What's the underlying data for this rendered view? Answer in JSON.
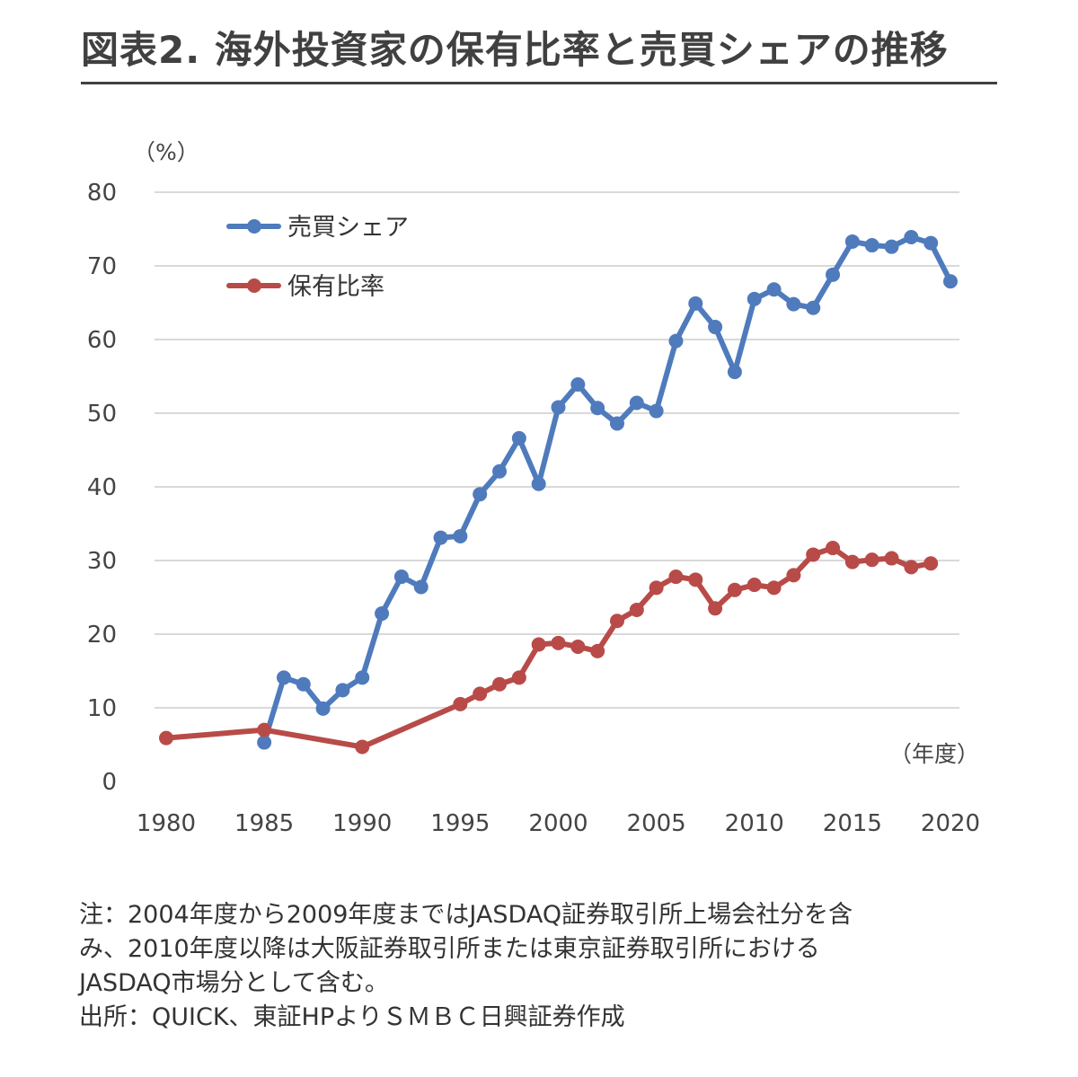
{
  "title": "図表2. 海外投資家の保有比率と売買シェアの推移",
  "colors": {
    "share": "#4f7bbd",
    "holding": "#b84b48",
    "grid": "#d9d9d9",
    "axis_text": "#444444"
  },
  "chart_data": {
    "type": "line",
    "title": "",
    "ylabel": "（%）",
    "xlabel": "（年度）",
    "ylim": [
      0,
      80
    ],
    "yticks": [
      0,
      10,
      20,
      30,
      40,
      50,
      60,
      70,
      80
    ],
    "xlim": [
      1980,
      2020
    ],
    "xticks": [
      1980,
      1985,
      1990,
      1995,
      2000,
      2005,
      2010,
      2015,
      2020
    ],
    "grid": true,
    "legend_position": "top-left",
    "series": [
      {
        "name": "売買シェア",
        "color": "#4f7bbd",
        "points": [
          [
            1985,
            5.3
          ],
          [
            1986,
            14.1
          ],
          [
            1987,
            13.2
          ],
          [
            1988,
            9.9
          ],
          [
            1989,
            12.4
          ],
          [
            1990,
            14.1
          ],
          [
            1991,
            22.8
          ],
          [
            1992,
            27.8
          ],
          [
            1993,
            26.4
          ],
          [
            1994,
            33.1
          ],
          [
            1995,
            33.3
          ],
          [
            1996,
            39.0
          ],
          [
            1997,
            42.1
          ],
          [
            1998,
            46.6
          ],
          [
            1999,
            40.4
          ],
          [
            2000,
            50.8
          ],
          [
            2001,
            53.9
          ],
          [
            2002,
            50.7
          ],
          [
            2003,
            48.6
          ],
          [
            2004,
            51.4
          ],
          [
            2005,
            50.3
          ],
          [
            2006,
            59.8
          ],
          [
            2007,
            64.9
          ],
          [
            2008,
            61.7
          ],
          [
            2009,
            55.6
          ],
          [
            2010,
            65.5
          ],
          [
            2011,
            66.8
          ],
          [
            2012,
            64.8
          ],
          [
            2013,
            64.3
          ],
          [
            2014,
            68.8
          ],
          [
            2015,
            73.3
          ],
          [
            2016,
            72.8
          ],
          [
            2017,
            72.6
          ],
          [
            2018,
            73.9
          ],
          [
            2019,
            73.1
          ],
          [
            2020,
            67.9
          ]
        ]
      },
      {
        "name": "保有比率",
        "color": "#b84b48",
        "points": [
          [
            1980,
            5.9
          ],
          [
            1985,
            7.0
          ],
          [
            1990,
            4.7
          ],
          [
            1995,
            10.5
          ],
          [
            1996,
            11.9
          ],
          [
            1997,
            13.2
          ],
          [
            1998,
            14.1
          ],
          [
            1999,
            18.6
          ],
          [
            2000,
            18.8
          ],
          [
            2001,
            18.3
          ],
          [
            2002,
            17.7
          ],
          [
            2003,
            21.8
          ],
          [
            2004,
            23.3
          ],
          [
            2005,
            26.3
          ],
          [
            2006,
            27.8
          ],
          [
            2007,
            27.4
          ],
          [
            2008,
            23.5
          ],
          [
            2009,
            26.0
          ],
          [
            2010,
            26.7
          ],
          [
            2011,
            26.3
          ],
          [
            2012,
            28.0
          ],
          [
            2013,
            30.8
          ],
          [
            2014,
            31.7
          ],
          [
            2015,
            29.8
          ],
          [
            2016,
            30.1
          ],
          [
            2017,
            30.3
          ],
          [
            2018,
            29.1
          ],
          [
            2019,
            29.6
          ]
        ]
      }
    ]
  },
  "notes": [
    "注：2004年度から2009年度まではJASDAQ証券取引所上場会社分を含",
    "み、2010年度以降は大阪証券取引所または東京証券取引所における",
    "JASDAQ市場分として含む。",
    "出所：QUICK、東証HPよりＳＭＢＣ日興証券作成"
  ]
}
